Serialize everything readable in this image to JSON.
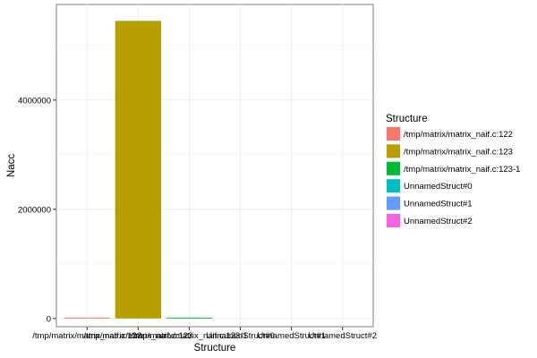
{
  "chart_data": {
    "type": "bar",
    "xlabel": "Structure",
    "ylabel": "Nacc",
    "legend_title": "Structure",
    "legend_position": "right",
    "grid": true,
    "ylim": [
      -150000,
      5750000
    ],
    "yticks": [
      {
        "value": 0,
        "label": "0"
      },
      {
        "value": 2000000,
        "label": "2000000"
      },
      {
        "value": 4000000,
        "label": "4000000"
      }
    ],
    "categories": [
      "/tmp/matrix/matrix_naif.c:122",
      "/tmp/matrix/matrix_naif.c:123",
      "/tmp/matrix/matrix_naif.c:123-1",
      "UnnamedStruct#0",
      "UnnamedStruct#1",
      "UnnamedStruct#2"
    ],
    "values": [
      12000,
      5450000,
      12000,
      0,
      0,
      0
    ],
    "colors": [
      "#F8766D",
      "#B79F00",
      "#00BA38",
      "#00BFC4",
      "#619CFF",
      "#F564E3"
    ]
  }
}
